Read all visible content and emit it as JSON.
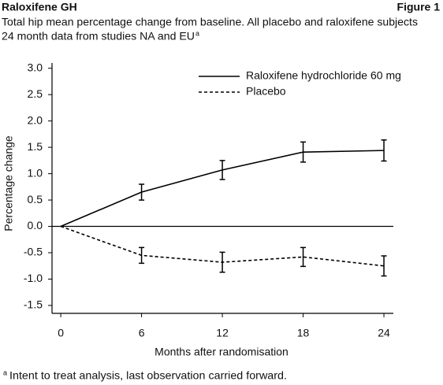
{
  "chart_data": {
    "type": "line",
    "title": "Raloxifene GH",
    "figure_label": "Figure 1",
    "subtitle": [
      "Total hip mean percentage change from baseline. All placebo and raloxifene subjects",
      "24 month data from studies NA and EU"
    ],
    "subtitle_superscript": "a",
    "footnote": {
      "marker": "a",
      "text": "Intent to treat analysis, last observation carried forward."
    },
    "x_label": "Months after randomisation",
    "y_label": "Percentage change",
    "x": [
      0,
      6,
      12,
      18,
      24
    ],
    "xlim": [
      -0.65,
      24.7
    ],
    "xticks": [
      0,
      6,
      12,
      18,
      24
    ],
    "ylim": [
      -1.65,
      3.1
    ],
    "yticks": [
      {
        "value": 3,
        "label": "3.0"
      },
      {
        "value": 2.5,
        "label": "2.5"
      },
      {
        "value": 2,
        "label": "2.0"
      },
      {
        "value": 1.5,
        "label": "1.5"
      },
      {
        "value": 1,
        "label": "1.0"
      },
      {
        "value": 0.5,
        "label": "0.5"
      },
      {
        "value": 0,
        "label": "0.0"
      },
      {
        "value": -0.5,
        "label": "-0.5"
      },
      {
        "value": -1,
        "label": "-1.0"
      },
      {
        "value": -1.5,
        "label": "-1.5"
      }
    ],
    "legend": "upper right",
    "series": [
      {
        "name": "Raloxifene hydrochloride 60 mg",
        "color": "#000000",
        "dashed": false,
        "values": [
          0,
          0.65,
          1.07,
          1.41,
          1.44
        ],
        "errors": [
          null,
          0.15,
          0.18,
          0.19,
          0.2
        ]
      },
      {
        "name": "Placebo",
        "color": "#000000",
        "dashed": true,
        "values": [
          0,
          -0.55,
          -0.68,
          -0.58,
          -0.75
        ],
        "errors": [
          null,
          0.15,
          0.19,
          0.18,
          0.19
        ]
      }
    ]
  }
}
